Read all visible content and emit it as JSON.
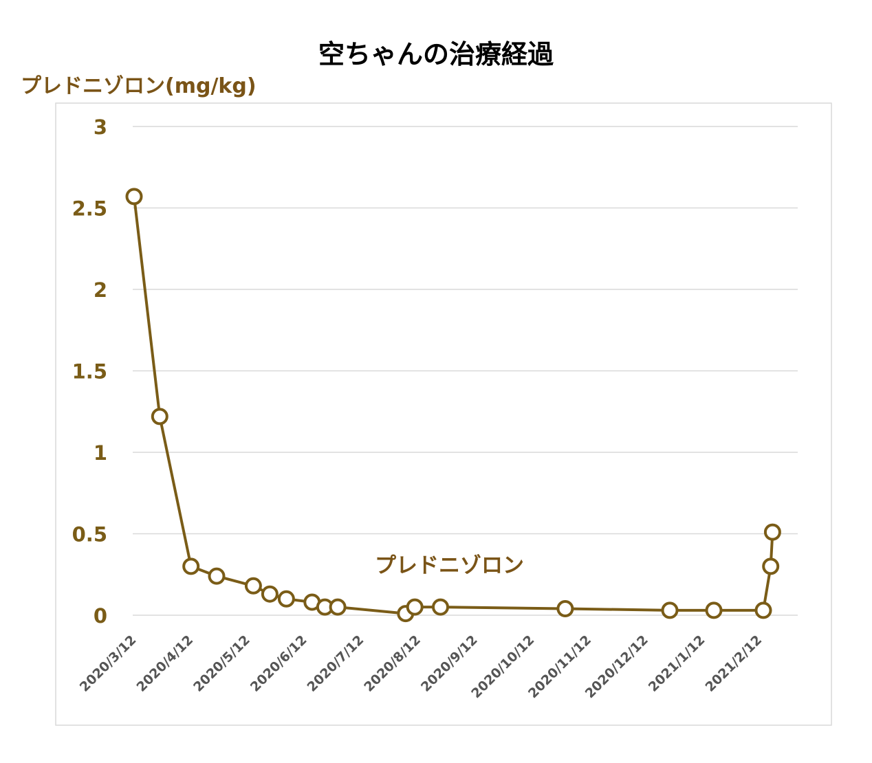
{
  "chart_data": {
    "type": "line",
    "title": "空ちゃんの治療経過",
    "ylabel": "プレドニゾロン(mg/kg)",
    "xlabel": "",
    "ylim": [
      0,
      3
    ],
    "yticks": [
      "0",
      "0.5",
      "1",
      "1.5",
      "2",
      "2.5",
      "3"
    ],
    "xticks": [
      "2020/3/12",
      "2020/4/12",
      "2020/5/12",
      "2020/6/12",
      "2020/7/12",
      "2020/8/12",
      "2020/9/12",
      "2020/10/12",
      "2020/11/12",
      "2020/12/12",
      "2021/1/12",
      "2021/2/12"
    ],
    "grid": true,
    "series": [
      {
        "name": "プレドニゾロン",
        "color": "#7a5c17",
        "points": [
          [
            "2020/3/12",
            2.57
          ],
          [
            "2020/3/26",
            1.22
          ],
          [
            "2020/4/12",
            0.3
          ],
          [
            "2020/4/26",
            0.24
          ],
          [
            "2020/5/16",
            0.18
          ],
          [
            "2020/5/25",
            0.13
          ],
          [
            "2020/6/3",
            0.1
          ],
          [
            "2020/6/17",
            0.08
          ],
          [
            "2020/6/24",
            0.05
          ],
          [
            "2020/7/1",
            0.05
          ],
          [
            "2020/8/7",
            0.01
          ],
          [
            "2020/8/12",
            0.05
          ],
          [
            "2020/8/26",
            0.05
          ],
          [
            "2020/11/2",
            0.04
          ],
          [
            "2020/12/29",
            0.03
          ],
          [
            "2021/1/22",
            0.03
          ],
          [
            "2021/2/18",
            0.03
          ],
          [
            "2021/2/22",
            0.3
          ],
          [
            "2021/2/23",
            0.51
          ]
        ]
      }
    ]
  }
}
